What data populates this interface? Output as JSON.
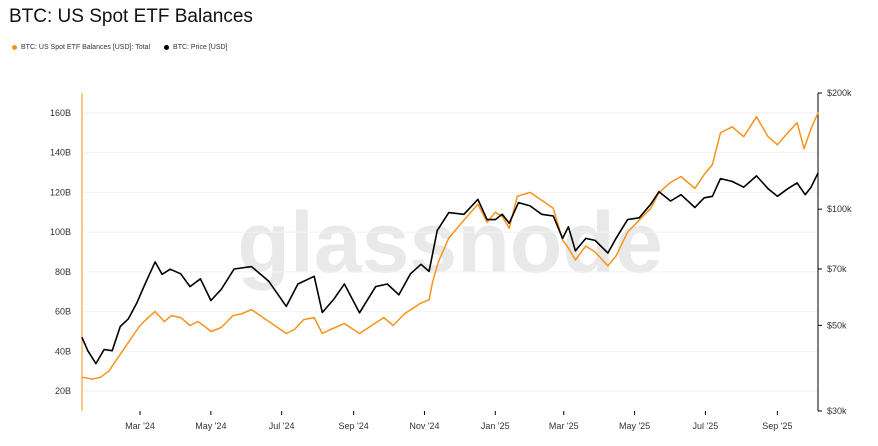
{
  "title": "BTC: US Spot ETF Balances",
  "legend": [
    {
      "label": "BTC: US Spot ETF Balances [USD]: Total",
      "color": "#f7931a"
    },
    {
      "label": "BTC: Price [USD]",
      "color": "#000000"
    }
  ],
  "watermark": "glassnode",
  "chart_data": {
    "type": "line",
    "title": "BTC: US Spot ETF Balances",
    "x_range": [
      "2024-01-11",
      "2025-10-06"
    ],
    "x_ticks": [
      {
        "date": "2024-03-01",
        "label": "Mar '24"
      },
      {
        "date": "2024-05-01",
        "label": "May '24"
      },
      {
        "date": "2024-07-01",
        "label": "Jul '24"
      },
      {
        "date": "2024-09-01",
        "label": "Sep '24"
      },
      {
        "date": "2024-11-01",
        "label": "Nov '24"
      },
      {
        "date": "2025-01-01",
        "label": "Jan '25"
      },
      {
        "date": "2025-03-01",
        "label": "Mar '25"
      },
      {
        "date": "2025-05-01",
        "label": "May '25"
      },
      {
        "date": "2025-07-01",
        "label": "Jul '25"
      },
      {
        "date": "2025-09-01",
        "label": "Sep '25"
      }
    ],
    "y_left": {
      "ticks": [
        20,
        40,
        60,
        80,
        100,
        120,
        140,
        160
      ],
      "tick_labels": [
        "20B",
        "40B",
        "60B",
        "80B",
        "100B",
        "120B",
        "140B",
        "160B"
      ],
      "range": [
        10,
        170
      ]
    },
    "y_right": {
      "scale": "log",
      "ticks": [
        30000,
        50000,
        70000,
        100000,
        200000
      ],
      "tick_labels": [
        "$30k",
        "$50k",
        "$70k",
        "$100k",
        "$200k"
      ],
      "range": [
        30000,
        200000
      ]
    },
    "series": [
      {
        "name": "BTC: US Spot ETF Balances [USD]: Total",
        "axis": "left",
        "color": "#f7931a",
        "points": [
          [
            "2024-01-11",
            27
          ],
          [
            "2024-01-20",
            26
          ],
          [
            "2024-01-27",
            27
          ],
          [
            "2024-02-03",
            30
          ],
          [
            "2024-02-10",
            36
          ],
          [
            "2024-02-17",
            42
          ],
          [
            "2024-02-24",
            48
          ],
          [
            "2024-03-01",
            53
          ],
          [
            "2024-03-08",
            57
          ],
          [
            "2024-03-14",
            60
          ],
          [
            "2024-03-22",
            55
          ],
          [
            "2024-03-28",
            58
          ],
          [
            "2024-04-05",
            57
          ],
          [
            "2024-04-13",
            53
          ],
          [
            "2024-04-20",
            55
          ],
          [
            "2024-04-27",
            52
          ],
          [
            "2024-05-01",
            50
          ],
          [
            "2024-05-10",
            52
          ],
          [
            "2024-05-20",
            58
          ],
          [
            "2024-05-28",
            59
          ],
          [
            "2024-06-05",
            61
          ],
          [
            "2024-06-15",
            57
          ],
          [
            "2024-06-25",
            53
          ],
          [
            "2024-07-05",
            49
          ],
          [
            "2024-07-12",
            51
          ],
          [
            "2024-07-20",
            56
          ],
          [
            "2024-07-29",
            57
          ],
          [
            "2024-08-05",
            49
          ],
          [
            "2024-08-12",
            51
          ],
          [
            "2024-08-24",
            54
          ],
          [
            "2024-09-06",
            49
          ],
          [
            "2024-09-14",
            52
          ],
          [
            "2024-09-27",
            57
          ],
          [
            "2024-10-05",
            53
          ],
          [
            "2024-10-15",
            59
          ],
          [
            "2024-10-28",
            64
          ],
          [
            "2024-11-05",
            66
          ],
          [
            "2024-11-08",
            75
          ],
          [
            "2024-11-13",
            85
          ],
          [
            "2024-11-22",
            97
          ],
          [
            "2024-12-05",
            106
          ],
          [
            "2024-12-17",
            114
          ],
          [
            "2024-12-25",
            105
          ],
          [
            "2025-01-01",
            110
          ],
          [
            "2025-01-07",
            108
          ],
          [
            "2025-01-13",
            102
          ],
          [
            "2025-01-20",
            118
          ],
          [
            "2025-01-31",
            120
          ],
          [
            "2025-02-10",
            116
          ],
          [
            "2025-02-20",
            112
          ],
          [
            "2025-02-28",
            96
          ],
          [
            "2025-03-05",
            92
          ],
          [
            "2025-03-11",
            86
          ],
          [
            "2025-03-20",
            93
          ],
          [
            "2025-03-28",
            90
          ],
          [
            "2025-04-08",
            83
          ],
          [
            "2025-04-15",
            88
          ],
          [
            "2025-04-25",
            100
          ],
          [
            "2025-05-05",
            106
          ],
          [
            "2025-05-15",
            112
          ],
          [
            "2025-05-22",
            120
          ],
          [
            "2025-06-01",
            125
          ],
          [
            "2025-06-10",
            128
          ],
          [
            "2025-06-22",
            122
          ],
          [
            "2025-06-30",
            129
          ],
          [
            "2025-07-07",
            134
          ],
          [
            "2025-07-14",
            150
          ],
          [
            "2025-07-24",
            153
          ],
          [
            "2025-08-03",
            148
          ],
          [
            "2025-08-14",
            158
          ],
          [
            "2025-08-24",
            148
          ],
          [
            "2025-09-01",
            144
          ],
          [
            "2025-09-10",
            150
          ],
          [
            "2025-09-18",
            155
          ],
          [
            "2025-09-24",
            142
          ],
          [
            "2025-09-30",
            152
          ],
          [
            "2025-10-06",
            160
          ]
        ]
      },
      {
        "name": "BTC: Price [USD]",
        "axis": "right",
        "color": "#000000",
        "points": [
          [
            "2024-01-11",
            46500
          ],
          [
            "2024-01-16",
            43000
          ],
          [
            "2024-01-23",
            39800
          ],
          [
            "2024-01-30",
            43300
          ],
          [
            "2024-02-06",
            43000
          ],
          [
            "2024-02-13",
            49700
          ],
          [
            "2024-02-20",
            52000
          ],
          [
            "2024-02-27",
            57000
          ],
          [
            "2024-03-05",
            63700
          ],
          [
            "2024-03-14",
            73000
          ],
          [
            "2024-03-20",
            67800
          ],
          [
            "2024-03-27",
            69900
          ],
          [
            "2024-04-05",
            68000
          ],
          [
            "2024-04-13",
            63000
          ],
          [
            "2024-04-22",
            66000
          ],
          [
            "2024-05-01",
            58000
          ],
          [
            "2024-05-10",
            62000
          ],
          [
            "2024-05-21",
            70000
          ],
          [
            "2024-06-05",
            71000
          ],
          [
            "2024-06-20",
            65000
          ],
          [
            "2024-07-05",
            56000
          ],
          [
            "2024-07-15",
            64000
          ],
          [
            "2024-07-29",
            67000
          ],
          [
            "2024-08-05",
            54000
          ],
          [
            "2024-08-15",
            58500
          ],
          [
            "2024-08-24",
            64000
          ],
          [
            "2024-09-06",
            53900
          ],
          [
            "2024-09-20",
            63000
          ],
          [
            "2024-09-30",
            64000
          ],
          [
            "2024-10-10",
            60000
          ],
          [
            "2024-10-20",
            68000
          ],
          [
            "2024-10-29",
            72000
          ],
          [
            "2024-11-05",
            69000
          ],
          [
            "2024-11-12",
            88000
          ],
          [
            "2024-11-22",
            98000
          ],
          [
            "2024-12-05",
            97000
          ],
          [
            "2024-12-17",
            106000
          ],
          [
            "2024-12-25",
            94000
          ],
          [
            "2025-01-01",
            94000
          ],
          [
            "2025-01-07",
            97000
          ],
          [
            "2025-01-13",
            92000
          ],
          [
            "2025-01-21",
            104000
          ],
          [
            "2025-01-31",
            102000
          ],
          [
            "2025-02-10",
            97000
          ],
          [
            "2025-02-20",
            96000
          ],
          [
            "2025-02-28",
            84000
          ],
          [
            "2025-03-05",
            90000
          ],
          [
            "2025-03-11",
            78000
          ],
          [
            "2025-03-20",
            84000
          ],
          [
            "2025-03-28",
            83000
          ],
          [
            "2025-04-08",
            77000
          ],
          [
            "2025-04-15",
            84000
          ],
          [
            "2025-04-25",
            94000
          ],
          [
            "2025-05-05",
            95000
          ],
          [
            "2025-05-15",
            103000
          ],
          [
            "2025-05-22",
            111000
          ],
          [
            "2025-06-01",
            105000
          ],
          [
            "2025-06-10",
            109000
          ],
          [
            "2025-06-22",
            101000
          ],
          [
            "2025-06-30",
            107000
          ],
          [
            "2025-07-07",
            108000
          ],
          [
            "2025-07-14",
            120000
          ],
          [
            "2025-07-24",
            118000
          ],
          [
            "2025-08-03",
            114000
          ],
          [
            "2025-08-14",
            122000
          ],
          [
            "2025-08-24",
            113000
          ],
          [
            "2025-09-01",
            108000
          ],
          [
            "2025-09-10",
            113000
          ],
          [
            "2025-09-18",
            117000
          ],
          [
            "2025-09-25",
            109000
          ],
          [
            "2025-09-30",
            114000
          ],
          [
            "2025-10-06",
            124000
          ]
        ]
      }
    ]
  }
}
